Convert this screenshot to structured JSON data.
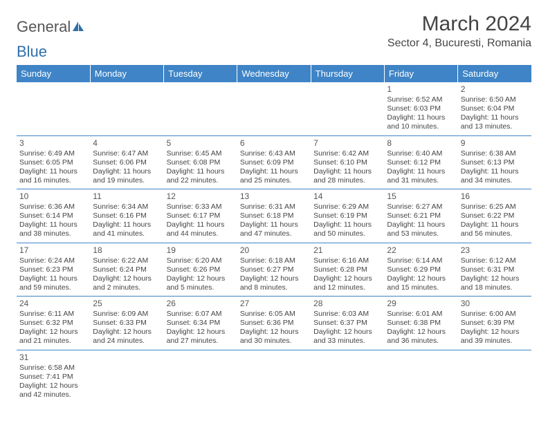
{
  "logo": {
    "part1": "General",
    "part2": "Blue"
  },
  "header": {
    "title": "March 2024",
    "location": "Sector 4, Bucuresti, Romania"
  },
  "colors": {
    "headerBg": "#3e84c6",
    "headerText": "#ffffff",
    "border": "#3e84c6",
    "text": "#444444",
    "logoGray": "#555555",
    "logoBlue": "#2f6fa8",
    "pageBg": "#ffffff"
  },
  "calendar": {
    "dayNames": [
      "Sunday",
      "Monday",
      "Tuesday",
      "Wednesday",
      "Thursday",
      "Friday",
      "Saturday"
    ],
    "weeks": [
      [
        null,
        null,
        null,
        null,
        null,
        {
          "day": "1",
          "sunrise": "Sunrise: 6:52 AM",
          "sunset": "Sunset: 6:03 PM",
          "daylight1": "Daylight: 11 hours",
          "daylight2": "and 10 minutes."
        },
        {
          "day": "2",
          "sunrise": "Sunrise: 6:50 AM",
          "sunset": "Sunset: 6:04 PM",
          "daylight1": "Daylight: 11 hours",
          "daylight2": "and 13 minutes."
        }
      ],
      [
        {
          "day": "3",
          "sunrise": "Sunrise: 6:49 AM",
          "sunset": "Sunset: 6:05 PM",
          "daylight1": "Daylight: 11 hours",
          "daylight2": "and 16 minutes."
        },
        {
          "day": "4",
          "sunrise": "Sunrise: 6:47 AM",
          "sunset": "Sunset: 6:06 PM",
          "daylight1": "Daylight: 11 hours",
          "daylight2": "and 19 minutes."
        },
        {
          "day": "5",
          "sunrise": "Sunrise: 6:45 AM",
          "sunset": "Sunset: 6:08 PM",
          "daylight1": "Daylight: 11 hours",
          "daylight2": "and 22 minutes."
        },
        {
          "day": "6",
          "sunrise": "Sunrise: 6:43 AM",
          "sunset": "Sunset: 6:09 PM",
          "daylight1": "Daylight: 11 hours",
          "daylight2": "and 25 minutes."
        },
        {
          "day": "7",
          "sunrise": "Sunrise: 6:42 AM",
          "sunset": "Sunset: 6:10 PM",
          "daylight1": "Daylight: 11 hours",
          "daylight2": "and 28 minutes."
        },
        {
          "day": "8",
          "sunrise": "Sunrise: 6:40 AM",
          "sunset": "Sunset: 6:12 PM",
          "daylight1": "Daylight: 11 hours",
          "daylight2": "and 31 minutes."
        },
        {
          "day": "9",
          "sunrise": "Sunrise: 6:38 AM",
          "sunset": "Sunset: 6:13 PM",
          "daylight1": "Daylight: 11 hours",
          "daylight2": "and 34 minutes."
        }
      ],
      [
        {
          "day": "10",
          "sunrise": "Sunrise: 6:36 AM",
          "sunset": "Sunset: 6:14 PM",
          "daylight1": "Daylight: 11 hours",
          "daylight2": "and 38 minutes."
        },
        {
          "day": "11",
          "sunrise": "Sunrise: 6:34 AM",
          "sunset": "Sunset: 6:16 PM",
          "daylight1": "Daylight: 11 hours",
          "daylight2": "and 41 minutes."
        },
        {
          "day": "12",
          "sunrise": "Sunrise: 6:33 AM",
          "sunset": "Sunset: 6:17 PM",
          "daylight1": "Daylight: 11 hours",
          "daylight2": "and 44 minutes."
        },
        {
          "day": "13",
          "sunrise": "Sunrise: 6:31 AM",
          "sunset": "Sunset: 6:18 PM",
          "daylight1": "Daylight: 11 hours",
          "daylight2": "and 47 minutes."
        },
        {
          "day": "14",
          "sunrise": "Sunrise: 6:29 AM",
          "sunset": "Sunset: 6:19 PM",
          "daylight1": "Daylight: 11 hours",
          "daylight2": "and 50 minutes."
        },
        {
          "day": "15",
          "sunrise": "Sunrise: 6:27 AM",
          "sunset": "Sunset: 6:21 PM",
          "daylight1": "Daylight: 11 hours",
          "daylight2": "and 53 minutes."
        },
        {
          "day": "16",
          "sunrise": "Sunrise: 6:25 AM",
          "sunset": "Sunset: 6:22 PM",
          "daylight1": "Daylight: 11 hours",
          "daylight2": "and 56 minutes."
        }
      ],
      [
        {
          "day": "17",
          "sunrise": "Sunrise: 6:24 AM",
          "sunset": "Sunset: 6:23 PM",
          "daylight1": "Daylight: 11 hours",
          "daylight2": "and 59 minutes."
        },
        {
          "day": "18",
          "sunrise": "Sunrise: 6:22 AM",
          "sunset": "Sunset: 6:24 PM",
          "daylight1": "Daylight: 12 hours",
          "daylight2": "and 2 minutes."
        },
        {
          "day": "19",
          "sunrise": "Sunrise: 6:20 AM",
          "sunset": "Sunset: 6:26 PM",
          "daylight1": "Daylight: 12 hours",
          "daylight2": "and 5 minutes."
        },
        {
          "day": "20",
          "sunrise": "Sunrise: 6:18 AM",
          "sunset": "Sunset: 6:27 PM",
          "daylight1": "Daylight: 12 hours",
          "daylight2": "and 8 minutes."
        },
        {
          "day": "21",
          "sunrise": "Sunrise: 6:16 AM",
          "sunset": "Sunset: 6:28 PM",
          "daylight1": "Daylight: 12 hours",
          "daylight2": "and 12 minutes."
        },
        {
          "day": "22",
          "sunrise": "Sunrise: 6:14 AM",
          "sunset": "Sunset: 6:29 PM",
          "daylight1": "Daylight: 12 hours",
          "daylight2": "and 15 minutes."
        },
        {
          "day": "23",
          "sunrise": "Sunrise: 6:12 AM",
          "sunset": "Sunset: 6:31 PM",
          "daylight1": "Daylight: 12 hours",
          "daylight2": "and 18 minutes."
        }
      ],
      [
        {
          "day": "24",
          "sunrise": "Sunrise: 6:11 AM",
          "sunset": "Sunset: 6:32 PM",
          "daylight1": "Daylight: 12 hours",
          "daylight2": "and 21 minutes."
        },
        {
          "day": "25",
          "sunrise": "Sunrise: 6:09 AM",
          "sunset": "Sunset: 6:33 PM",
          "daylight1": "Daylight: 12 hours",
          "daylight2": "and 24 minutes."
        },
        {
          "day": "26",
          "sunrise": "Sunrise: 6:07 AM",
          "sunset": "Sunset: 6:34 PM",
          "daylight1": "Daylight: 12 hours",
          "daylight2": "and 27 minutes."
        },
        {
          "day": "27",
          "sunrise": "Sunrise: 6:05 AM",
          "sunset": "Sunset: 6:36 PM",
          "daylight1": "Daylight: 12 hours",
          "daylight2": "and 30 minutes."
        },
        {
          "day": "28",
          "sunrise": "Sunrise: 6:03 AM",
          "sunset": "Sunset: 6:37 PM",
          "daylight1": "Daylight: 12 hours",
          "daylight2": "and 33 minutes."
        },
        {
          "day": "29",
          "sunrise": "Sunrise: 6:01 AM",
          "sunset": "Sunset: 6:38 PM",
          "daylight1": "Daylight: 12 hours",
          "daylight2": "and 36 minutes."
        },
        {
          "day": "30",
          "sunrise": "Sunrise: 6:00 AM",
          "sunset": "Sunset: 6:39 PM",
          "daylight1": "Daylight: 12 hours",
          "daylight2": "and 39 minutes."
        }
      ],
      [
        {
          "day": "31",
          "sunrise": "Sunrise: 6:58 AM",
          "sunset": "Sunset: 7:41 PM",
          "daylight1": "Daylight: 12 hours",
          "daylight2": "and 42 minutes."
        },
        null,
        null,
        null,
        null,
        null,
        null
      ]
    ]
  }
}
